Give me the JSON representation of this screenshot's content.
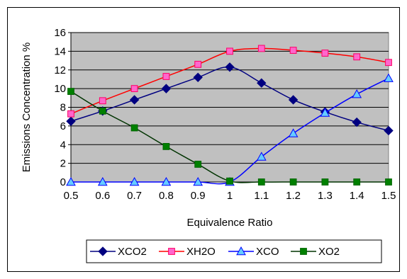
{
  "chart_data": {
    "type": "line",
    "xlabel": "Equivalence Ratio",
    "ylabel": "Emissions Concentration %",
    "ylim": [
      0,
      16
    ],
    "y_ticks": [
      0,
      2,
      4,
      6,
      8,
      10,
      12,
      14,
      16
    ],
    "x_ticks": [
      "0.5",
      "0.6",
      "0.7",
      "0.8",
      "0.9",
      "1",
      "1.1",
      "1.2",
      "1.3",
      "1.4",
      "1.5"
    ],
    "x": [
      0.5,
      0.6,
      0.7,
      0.8,
      0.9,
      1.0,
      1.1,
      1.2,
      1.3,
      1.4,
      1.5
    ],
    "plot_background": "#c0c0c0",
    "grid": "horizontal",
    "legend_position": "bottom",
    "series": [
      {
        "name": "XCO2",
        "color": "#000080",
        "marker": "diamond",
        "values": [
          6.5,
          7.6,
          8.8,
          10.0,
          11.2,
          12.3,
          10.6,
          8.8,
          7.5,
          6.4,
          5.5
        ]
      },
      {
        "name": "XH2O",
        "color": "#ff0000",
        "marker": "square",
        "marker_fill": "#ff66cc",
        "marker_stroke": "#ff0066",
        "values": [
          7.3,
          8.7,
          10.0,
          11.3,
          12.6,
          14.0,
          14.3,
          14.1,
          13.8,
          13.4,
          12.8
        ]
      },
      {
        "name": "XCO",
        "color": "#0000ff",
        "marker": "triangle",
        "marker_fill": "#66ccff",
        "marker_stroke": "#0000ff",
        "values": [
          0,
          0,
          0,
          0,
          0,
          0,
          2.7,
          5.2,
          7.4,
          9.4,
          11.1
        ]
      },
      {
        "name": "XO2",
        "color": "#003300",
        "marker": "square",
        "marker_fill": "#008000",
        "marker_stroke": "#006600",
        "values": [
          9.7,
          7.6,
          5.8,
          3.8,
          1.9,
          0.1,
          0,
          0,
          0,
          0,
          0
        ]
      }
    ]
  }
}
